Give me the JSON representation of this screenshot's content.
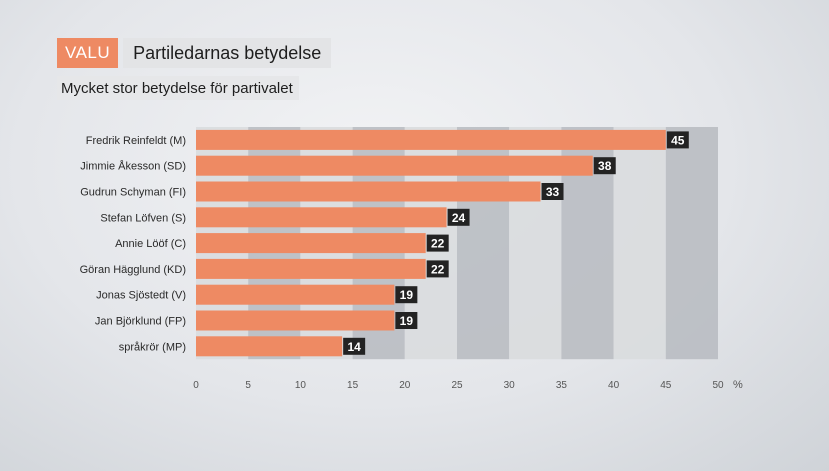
{
  "header": {
    "tag": "VALU",
    "title": "Partiledarnas betydelse",
    "subtitle": "Mycket stor betydelse för partivalet"
  },
  "colors": {
    "bar": "#ee8a63",
    "label_bg": "#232323",
    "band_light": "#d9dbde",
    "band_dark": "#b9bdc2"
  },
  "chart_data": {
    "type": "bar",
    "orientation": "horizontal",
    "title": "Partiledarnas betydelse",
    "subtitle": "Mycket stor betydelse för partivalet",
    "categories": [
      "Fredrik Reinfeldt (M)",
      "Jimmie Åkesson (SD)",
      "Gudrun Schyman (FI)",
      "Stefan Löfven (S)",
      "Annie Lööf (C)",
      "Göran Hägglund (KD)",
      "Jonas Sjöstedt (V)",
      "Jan Björklund (FP)",
      "språkrör (MP)"
    ],
    "values": [
      45,
      38,
      33,
      24,
      22,
      22,
      19,
      19,
      14
    ],
    "xlim": [
      0,
      50
    ],
    "xticks": [
      0,
      5,
      10,
      15,
      20,
      25,
      30,
      35,
      40,
      45,
      50
    ],
    "xunit": "%",
    "data_labels": true,
    "grid": "alternating vertical bands"
  }
}
